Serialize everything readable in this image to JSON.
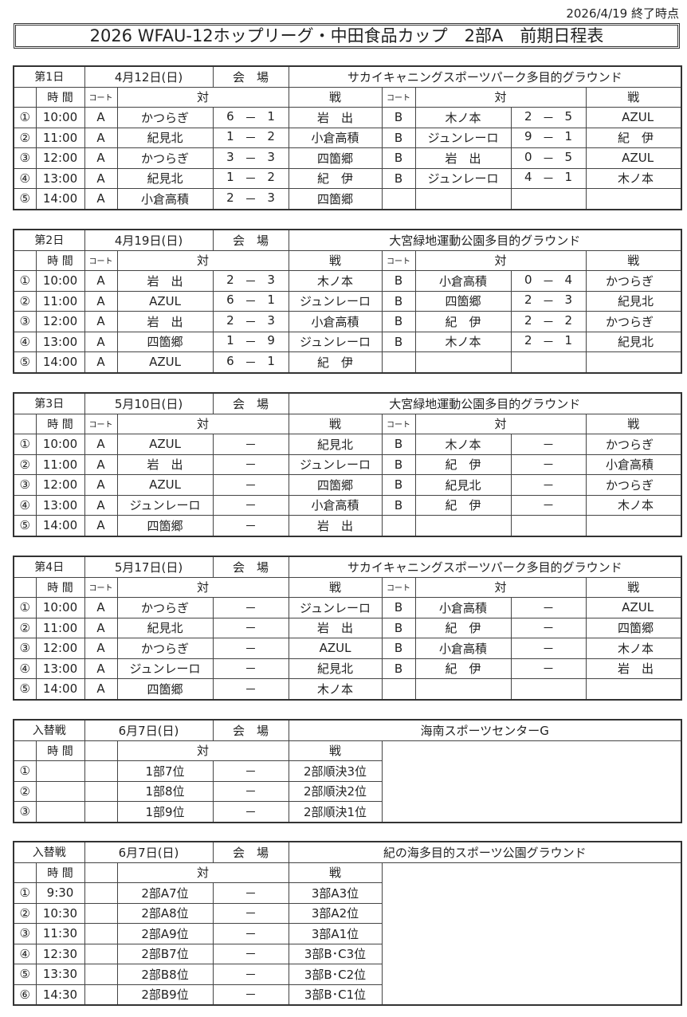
{
  "as_of": "2026/4/19 終了時点",
  "title": "2026 WFAU-12ホップリーグ・中田食品カップ　2部A　前期日程表",
  "header": {
    "time": "時 間",
    "court": "コート",
    "vs1": "対",
    "vs2": "戦",
    "venue_label": "会　場"
  },
  "days": [
    {
      "label": "第1日",
      "date": "4月12日(日)",
      "venue": "サカイキャニングスポーツパーク多目的グラウンド",
      "matches": [
        {
          "no": "①",
          "time": "10:00",
          "a": {
            "court": "A",
            "home": "かつらぎ",
            "hs": "6",
            "sep": "－",
            "as": "1",
            "away": "岩　出"
          },
          "b": {
            "court": "B",
            "home": "木ノ本",
            "hs": "2",
            "sep": "－",
            "as": "5",
            "away": "AZUL"
          }
        },
        {
          "no": "②",
          "time": "11:00",
          "a": {
            "court": "A",
            "home": "紀見北",
            "hs": "1",
            "sep": "－",
            "as": "2",
            "away": "小倉高積"
          },
          "b": {
            "court": "B",
            "home": "ジュンレーロ",
            "hs": "9",
            "sep": "－",
            "as": "1",
            "away": "紀　伊"
          }
        },
        {
          "no": "③",
          "time": "12:00",
          "a": {
            "court": "A",
            "home": "かつらぎ",
            "hs": "3",
            "sep": "－",
            "as": "3",
            "away": "四箇郷"
          },
          "b": {
            "court": "B",
            "home": "岩　出",
            "hs": "0",
            "sep": "－",
            "as": "5",
            "away": "AZUL"
          }
        },
        {
          "no": "④",
          "time": "13:00",
          "a": {
            "court": "A",
            "home": "紀見北",
            "hs": "1",
            "sep": "－",
            "as": "2",
            "away": "紀　伊"
          },
          "b": {
            "court": "B",
            "home": "ジュンレーロ",
            "hs": "4",
            "sep": "－",
            "as": "1",
            "away": "木ノ本"
          }
        },
        {
          "no": "⑤",
          "time": "14:00",
          "a": {
            "court": "A",
            "home": "小倉高積",
            "hs": "2",
            "sep": "－",
            "as": "3",
            "away": "四箇郷"
          },
          "b": {
            "court": "",
            "home": "",
            "hs": "",
            "sep": "",
            "as": "",
            "away": ""
          }
        }
      ]
    },
    {
      "label": "第2日",
      "date": "4月19日(日)",
      "venue": "大宮緑地運動公園多目的グラウンド",
      "matches": [
        {
          "no": "①",
          "time": "10:00",
          "a": {
            "court": "A",
            "home": "岩　出",
            "hs": "2",
            "sep": "－",
            "as": "3",
            "away": "木ノ本"
          },
          "b": {
            "court": "B",
            "home": "小倉高積",
            "hs": "0",
            "sep": "－",
            "as": "4",
            "away": "かつらぎ"
          }
        },
        {
          "no": "②",
          "time": "11:00",
          "a": {
            "court": "A",
            "home": "AZUL",
            "hs": "6",
            "sep": "－",
            "as": "1",
            "away": "ジュンレーロ"
          },
          "b": {
            "court": "B",
            "home": "四箇郷",
            "hs": "2",
            "sep": "－",
            "as": "3",
            "away": "紀見北"
          }
        },
        {
          "no": "③",
          "time": "12:00",
          "a": {
            "court": "A",
            "home": "岩　出",
            "hs": "2",
            "sep": "－",
            "as": "3",
            "away": "小倉高積"
          },
          "b": {
            "court": "B",
            "home": "紀　伊",
            "hs": "2",
            "sep": "－",
            "as": "2",
            "away": "かつらぎ"
          }
        },
        {
          "no": "④",
          "time": "13:00",
          "a": {
            "court": "A",
            "home": "四箇郷",
            "hs": "1",
            "sep": "－",
            "as": "9",
            "away": "ジュンレーロ"
          },
          "b": {
            "court": "B",
            "home": "木ノ本",
            "hs": "2",
            "sep": "－",
            "as": "1",
            "away": "紀見北"
          }
        },
        {
          "no": "⑤",
          "time": "14:00",
          "a": {
            "court": "A",
            "home": "AZUL",
            "hs": "6",
            "sep": "－",
            "as": "1",
            "away": "紀　伊"
          },
          "b": {
            "court": "",
            "home": "",
            "hs": "",
            "sep": "",
            "as": "",
            "away": ""
          }
        }
      ]
    },
    {
      "label": "第3日",
      "date": "5月10日(日)",
      "venue": "大宮緑地運動公園多目的グラウンド",
      "matches": [
        {
          "no": "①",
          "time": "10:00",
          "a": {
            "court": "A",
            "home": "AZUL",
            "hs": "",
            "sep": "－",
            "as": "",
            "away": "紀見北"
          },
          "b": {
            "court": "B",
            "home": "木ノ本",
            "hs": "",
            "sep": "－",
            "as": "",
            "away": "かつらぎ"
          }
        },
        {
          "no": "②",
          "time": "11:00",
          "a": {
            "court": "A",
            "home": "岩　出",
            "hs": "",
            "sep": "－",
            "as": "",
            "away": "ジュンレーロ"
          },
          "b": {
            "court": "B",
            "home": "紀　伊",
            "hs": "",
            "sep": "－",
            "as": "",
            "away": "小倉高積"
          }
        },
        {
          "no": "③",
          "time": "12:00",
          "a": {
            "court": "A",
            "home": "AZUL",
            "hs": "",
            "sep": "－",
            "as": "",
            "away": "四箇郷"
          },
          "b": {
            "court": "B",
            "home": "紀見北",
            "hs": "",
            "sep": "－",
            "as": "",
            "away": "かつらぎ"
          }
        },
        {
          "no": "④",
          "time": "13:00",
          "a": {
            "court": "A",
            "home": "ジュンレーロ",
            "hs": "",
            "sep": "－",
            "as": "",
            "away": "小倉高積"
          },
          "b": {
            "court": "B",
            "home": "紀　伊",
            "hs": "",
            "sep": "－",
            "as": "",
            "away": "木ノ本"
          }
        },
        {
          "no": "⑤",
          "time": "14:00",
          "a": {
            "court": "A",
            "home": "四箇郷",
            "hs": "",
            "sep": "－",
            "as": "",
            "away": "岩　出"
          },
          "b": {
            "court": "",
            "home": "",
            "hs": "",
            "sep": "",
            "as": "",
            "away": ""
          }
        }
      ]
    },
    {
      "label": "第4日",
      "date": "5月17日(日)",
      "venue": "サカイキャニングスポーツパーク多目的グラウンド",
      "matches": [
        {
          "no": "①",
          "time": "10:00",
          "a": {
            "court": "A",
            "home": "かつらぎ",
            "hs": "",
            "sep": "－",
            "as": "",
            "away": "ジュンレーロ"
          },
          "b": {
            "court": "B",
            "home": "小倉高積",
            "hs": "",
            "sep": "－",
            "as": "",
            "away": "AZUL"
          }
        },
        {
          "no": "②",
          "time": "11:00",
          "a": {
            "court": "A",
            "home": "紀見北",
            "hs": "",
            "sep": "－",
            "as": "",
            "away": "岩　出"
          },
          "b": {
            "court": "B",
            "home": "紀　伊",
            "hs": "",
            "sep": "－",
            "as": "",
            "away": "四箇郷"
          }
        },
        {
          "no": "③",
          "time": "12:00",
          "a": {
            "court": "A",
            "home": "かつらぎ",
            "hs": "",
            "sep": "－",
            "as": "",
            "away": "AZUL"
          },
          "b": {
            "court": "B",
            "home": "小倉高積",
            "hs": "",
            "sep": "－",
            "as": "",
            "away": "木ノ本"
          }
        },
        {
          "no": "④",
          "time": "13:00",
          "a": {
            "court": "A",
            "home": "ジュンレーロ",
            "hs": "",
            "sep": "－",
            "as": "",
            "away": "紀見北"
          },
          "b": {
            "court": "B",
            "home": "紀　伊",
            "hs": "",
            "sep": "－",
            "as": "",
            "away": "岩　出"
          }
        },
        {
          "no": "⑤",
          "time": "14:00",
          "a": {
            "court": "A",
            "home": "四箇郷",
            "hs": "",
            "sep": "－",
            "as": "",
            "away": "木ノ本"
          },
          "b": {
            "court": "",
            "home": "",
            "hs": "",
            "sep": "",
            "as": "",
            "away": ""
          }
        }
      ]
    }
  ],
  "playoffs": [
    {
      "label": "入替戦",
      "date": "6月7日(日)",
      "venue": "海南スポーツセンターG",
      "matches": [
        {
          "no": "①",
          "time": "",
          "home": "1部7位",
          "sep": "－",
          "away": "2部順決3位"
        },
        {
          "no": "②",
          "time": "",
          "home": "1部8位",
          "sep": "－",
          "away": "2部順決2位"
        },
        {
          "no": "③",
          "time": "",
          "home": "1部9位",
          "sep": "－",
          "away": "2部順決1位"
        }
      ]
    },
    {
      "label": "入替戦",
      "date": "6月7日(日)",
      "venue": "紀の海多目的スポーツ公園グラウンド",
      "matches": [
        {
          "no": "①",
          "time": "9:30",
          "home": "2部A7位",
          "sep": "－",
          "away": "3部A3位"
        },
        {
          "no": "②",
          "time": "10:30",
          "home": "2部A8位",
          "sep": "－",
          "away": "3部A2位"
        },
        {
          "no": "③",
          "time": "11:30",
          "home": "2部A9位",
          "sep": "－",
          "away": "3部A1位"
        },
        {
          "no": "④",
          "time": "12:30",
          "home": "2部B7位",
          "sep": "－",
          "away": "3部B･C3位"
        },
        {
          "no": "⑤",
          "time": "13:30",
          "home": "2部B8位",
          "sep": "－",
          "away": "3部B･C2位"
        },
        {
          "no": "⑥",
          "time": "14:30",
          "home": "2部B9位",
          "sep": "－",
          "away": "3部B･C1位"
        }
      ]
    }
  ]
}
